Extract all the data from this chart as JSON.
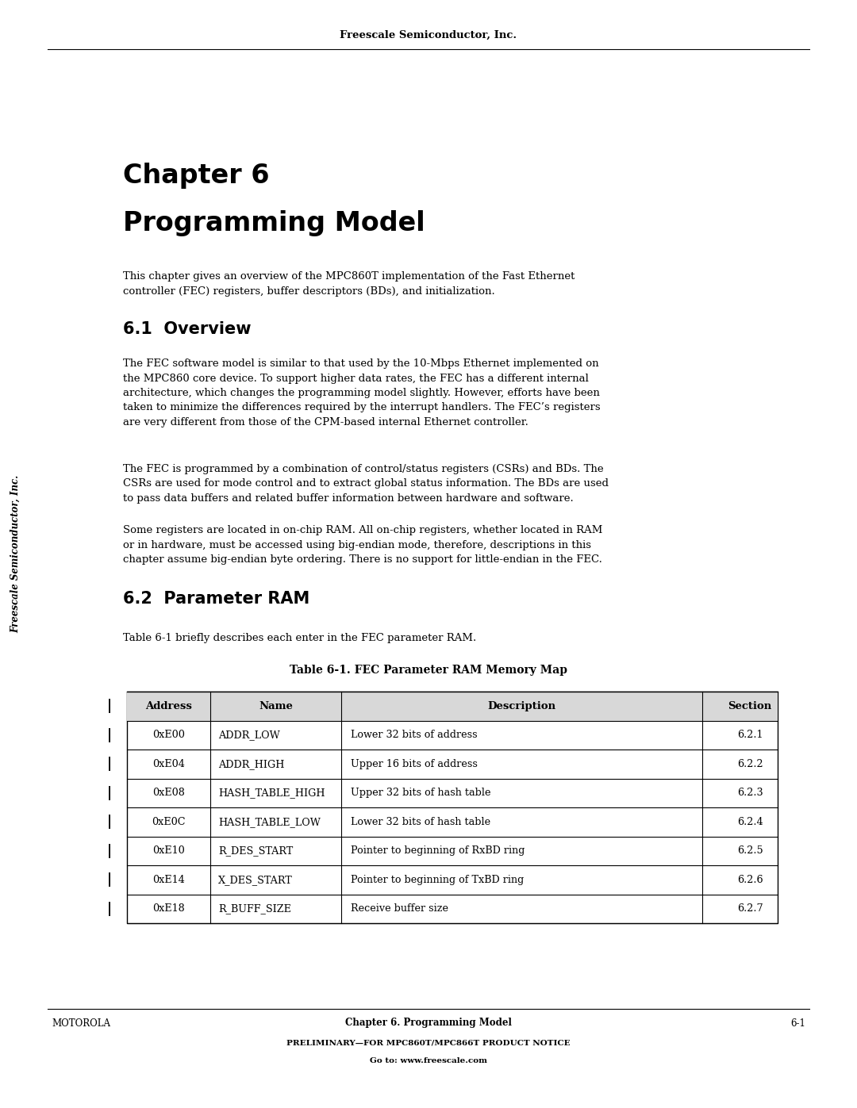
{
  "page_width": 10.8,
  "page_height": 13.97,
  "background_color": "#ffffff",
  "header_text": "Freescale Semiconductor, Inc.",
  "chapter_title_line1": "Chapter 6",
  "chapter_title_line2": "Programming Model",
  "intro_text": "This chapter gives an overview of the MPC860T implementation of the Fast Ethernet\ncontroller (FEC) registers, buffer descriptors (BDs), and initialization.",
  "section_61_title": "6.1  Overview",
  "section_61_para1": "The FEC software model is similar to that used by the 10-Mbps Ethernet implemented on\nthe MPC860 core device. To support higher data rates, the FEC has a different internal\narchitecture, which changes the programming model slightly. However, efforts have been\ntaken to minimize the differences required by the interrupt handlers. The FEC’s registers\nare very different from those of the CPM-based internal Ethernet controller.",
  "section_61_para2": "The FEC is programmed by a combination of control/status registers (CSRs) and BDs. The\nCSRs are used for mode control and to extract global status information. The BDs are used\nto pass data buffers and related buffer information between hardware and software.",
  "section_61_para3": "Some registers are located in on-chip RAM. All on-chip registers, whether located in RAM\nor in hardware, must be accessed using big-endian mode, therefore, descriptions in this\nchapter assume big-endian byte ordering. There is no support for little-endian in the FEC.",
  "section_62_title": "6.2  Parameter RAM",
  "section_62_intro": "Table 6-1 briefly describes each enter in the FEC parameter RAM.",
  "table_title": "Table 6-1. FEC Parameter RAM Memory Map",
  "table_headers": [
    "Address",
    "Name",
    "Description",
    "Section"
  ],
  "table_rows": [
    [
      "0xE00",
      "ADDR_LOW",
      "Lower 32 bits of address",
      "6.2.1"
    ],
    [
      "0xE04",
      "ADDR_HIGH",
      "Upper 16 bits of address",
      "6.2.2"
    ],
    [
      "0xE08",
      "HASH_TABLE_HIGH",
      "Upper 32 bits of hash table",
      "6.2.3"
    ],
    [
      "0xE0C",
      "HASH_TABLE_LOW",
      "Lower 32 bits of hash table",
      "6.2.4"
    ],
    [
      "0xE10",
      "R_DES_START",
      "Pointer to beginning of RxBD ring",
      "6.2.5"
    ],
    [
      "0xE14",
      "X_DES_START",
      "Pointer to beginning of TxBD ring",
      "6.2.6"
    ],
    [
      "0xE18",
      "R_BUFF_SIZE",
      "Receive buffer size",
      "6.2.7"
    ]
  ],
  "footer_left": "MOTOROLA",
  "footer_center": "Chapter 6. Programming Model",
  "footer_page": "6-1",
  "footer_line2": "PRELIMINARY—FOR MPC860T/MPC866T PRODUCT NOTICE",
  "footer_line3": "Go to: www.freescale.com",
  "sidebar_text": "Freescale Semiconductor, Inc."
}
